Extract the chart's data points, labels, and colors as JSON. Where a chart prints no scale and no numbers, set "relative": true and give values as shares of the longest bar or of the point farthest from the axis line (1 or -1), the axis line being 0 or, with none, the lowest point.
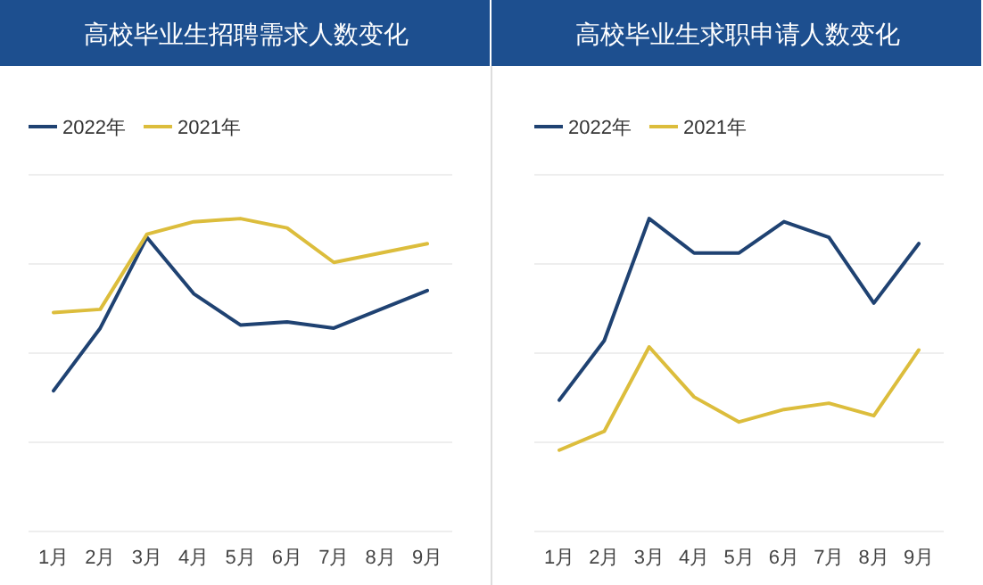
{
  "chart_data": [
    {
      "type": "line",
      "title": "高校毕业生招聘需求人数变化",
      "relative": true,
      "grid": "y",
      "legend": "top left",
      "marker": "none",
      "line_style": "solid",
      "categories": [
        "1月",
        "2月",
        "3月",
        "4月",
        "5月",
        "6月",
        "7月",
        "8月",
        "9月"
      ],
      "series": [
        {
          "name": "2022年",
          "color": "#1f4272",
          "values": [
            0.45,
            0.65,
            0.94,
            0.76,
            0.66,
            0.67,
            0.65,
            0.71,
            0.77
          ]
        },
        {
          "name": "2021年",
          "color": "#dcbd3c",
          "values": [
            0.7,
            0.71,
            0.95,
            0.99,
            1.0,
            0.97,
            0.86,
            0.89,
            0.92
          ]
        }
      ]
    },
    {
      "type": "line",
      "title": "高校毕业生求职申请人数变化",
      "relative": true,
      "grid": "y",
      "legend": "top left",
      "marker": "none",
      "line_style": "solid",
      "categories": [
        "1月",
        "2月",
        "3月",
        "4月",
        "5月",
        "6月",
        "7月",
        "8月",
        "9月"
      ],
      "series": [
        {
          "name": "2022年",
          "color": "#1f4272",
          "values": [
            0.42,
            0.61,
            1.0,
            0.89,
            0.89,
            0.99,
            0.94,
            0.73,
            0.92
          ]
        },
        {
          "name": "2021年",
          "color": "#dcbd3c",
          "values": [
            0.26,
            0.32,
            0.59,
            0.43,
            0.35,
            0.39,
            0.41,
            0.37,
            0.58
          ]
        }
      ]
    }
  ]
}
